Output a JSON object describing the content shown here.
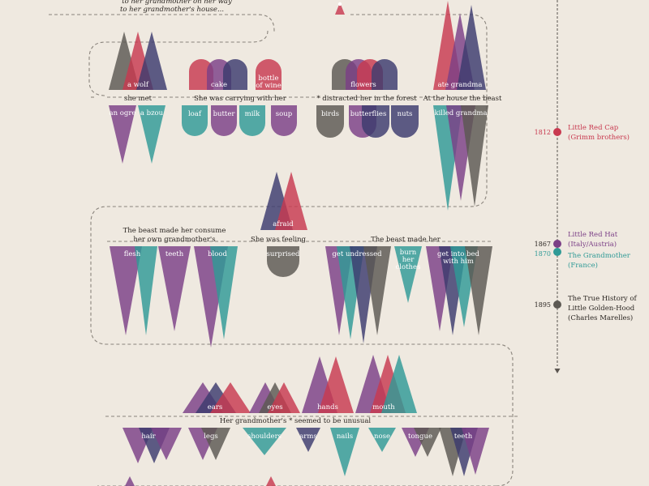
{
  "colors": {
    "red": "#c8394f",
    "purple": "#7b3f86",
    "navy": "#3c3a6e",
    "teal": "#2f9a96",
    "gray": "#5c5852",
    "bg": "#efe9e0",
    "text": "#2b2622",
    "line": "#8a847c",
    "timeline": "#5a5550"
  },
  "intro": {
    "line1": "to her grandmother on her way",
    "line2": "to her grandmother's house..."
  },
  "row1": {
    "met": {
      "caption": "she met",
      "up": [
        {
          "label": "a wolf"
        }
      ],
      "down": [
        {
          "label": "an ogre"
        },
        {
          "label": "a bzou"
        }
      ]
    },
    "carrying": {
      "caption": "She was carrying with her",
      "up": [
        {
          "label": "cake"
        },
        {
          "label": "bottle of wine"
        }
      ],
      "down": [
        {
          "label": "loaf"
        },
        {
          "label": "butter"
        },
        {
          "label": "milk"
        },
        {
          "label": "soup"
        }
      ]
    },
    "distracted": {
      "caption": "* distracted her in the forest",
      "up": [
        {
          "label": "flowers"
        }
      ],
      "down": [
        {
          "label": "birds"
        },
        {
          "label": "butterflies"
        },
        {
          "label": "nuts"
        }
      ]
    },
    "house": {
      "caption": "At the house the beast",
      "up": [
        {
          "label": "ate grandma"
        }
      ],
      "down": [
        {
          "label": "killed grandma"
        }
      ]
    }
  },
  "row2": {
    "consume": {
      "caption_line1": "The beast made her consume",
      "caption_line2": "her own grandmother's",
      "items": [
        {
          "label": "flesh"
        },
        {
          "label": "teeth"
        },
        {
          "label": "blood"
        }
      ]
    },
    "feeling": {
      "caption": "She was feeling",
      "up": [
        {
          "label": "afraid"
        }
      ],
      "down": [
        {
          "label": "surprised"
        }
      ]
    },
    "made": {
      "caption": "The beast made her",
      "items": [
        {
          "label": "get undressed"
        },
        {
          "label": "burn her clothes"
        },
        {
          "label": "get into bed with him"
        }
      ]
    }
  },
  "row3": {
    "caption": "Her grandmother's * seemed to be unusual",
    "up": [
      {
        "label": "ears"
      },
      {
        "label": "eyes"
      },
      {
        "label": "hands"
      },
      {
        "label": "mouth"
      }
    ],
    "down": [
      {
        "label": "hair"
      },
      {
        "label": "legs"
      },
      {
        "label": "shoulders"
      },
      {
        "label": "arms"
      },
      {
        "label": "nails"
      },
      {
        "label": "nose"
      },
      {
        "label": "tongue"
      },
      {
        "label": "teeth"
      }
    ]
  },
  "timeline": [
    {
      "year": "1812",
      "title_line1": "Little Red Cap",
      "title_line2": "(Grimm brothers)",
      "color": "#c8394f"
    },
    {
      "year": "1867",
      "title_line1": "Little Red Hat",
      "title_line2": "(Italy/Austria)",
      "color": "#7b3f86"
    },
    {
      "year": "1870",
      "title_line1": "The Grandmother",
      "title_line2": "(France)",
      "color": "#2f9a96"
    },
    {
      "year": "1895",
      "title_line1": "The True History of",
      "title_line2": "Little Golden-Hood",
      "title_line3": "(Charles Marelles)",
      "color": "#5c5852"
    }
  ]
}
